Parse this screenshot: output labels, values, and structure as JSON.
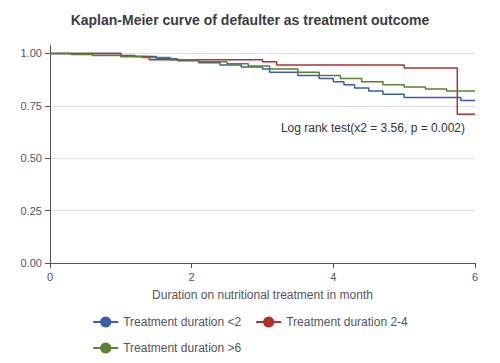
{
  "chart_data": {
    "type": "step",
    "title": "Kaplan-Meier curve of defaulter as treatment outcome",
    "x_label": "Duration on nutritional treatment in month",
    "annotation": "Log rank test(x2 = 3.56, p = 0.002)",
    "xlim": [
      0,
      6
    ],
    "xticks": [
      0,
      2,
      4,
      6
    ],
    "ylim": [
      0.0,
      1.04
    ],
    "yticks": [
      {
        "value": 0.0,
        "label": "0.00"
      },
      0.25,
      {
        "value": 0.5,
        "label": "0.50"
      },
      0.75,
      {
        "value": 1.0,
        "label": "1.00"
      }
    ],
    "grid": "y",
    "legend": "bottom",
    "series": [
      {
        "name": "Treatment duration <2",
        "color": "#3b5ea6",
        "x": [
          0,
          1.0,
          1.2,
          1.5,
          1.8,
          2.1,
          2.4,
          2.7,
          3.0,
          3.1,
          3.5,
          3.8,
          4.0,
          4.15,
          4.3,
          4.5,
          4.7,
          5.0,
          5.8,
          6.0
        ],
        "values": [
          1.0,
          0.99,
          0.985,
          0.975,
          0.965,
          0.955,
          0.945,
          0.935,
          0.925,
          0.91,
          0.895,
          0.88,
          0.865,
          0.85,
          0.835,
          0.82,
          0.805,
          0.79,
          0.775,
          0.775
        ]
      },
      {
        "name": "Treatment duration 2-4",
        "color": "#b03030",
        "x": [
          0,
          1.0,
          1.4,
          3.0,
          3.2,
          5.0,
          5.75,
          6.0
        ],
        "values": [
          1.0,
          0.985,
          0.97,
          0.96,
          0.945,
          0.93,
          0.71,
          0.71
        ]
      },
      {
        "name": "Treatment duration >6",
        "color": "#5a8030",
        "x": [
          0,
          0.3,
          0.6,
          1.0,
          1.3,
          1.7,
          2.1,
          2.5,
          2.8,
          3.1,
          3.5,
          3.8,
          4.1,
          4.4,
          4.7,
          5.0,
          5.3,
          5.6,
          6.0
        ],
        "values": [
          1.0,
          0.995,
          0.99,
          0.985,
          0.98,
          0.97,
          0.96,
          0.95,
          0.94,
          0.925,
          0.91,
          0.895,
          0.88,
          0.865,
          0.85,
          0.84,
          0.83,
          0.82,
          0.82
        ]
      }
    ]
  }
}
